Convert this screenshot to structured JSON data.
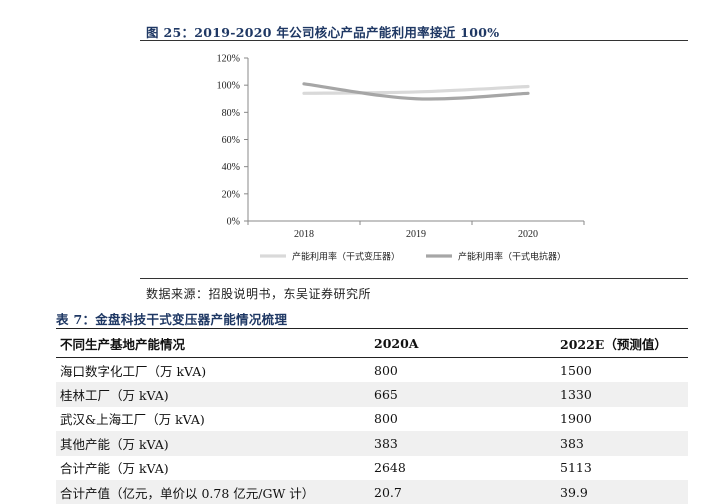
{
  "figure": {
    "title": "图 25：2019-2020 年公司核心产品产能利用率接近 100%"
  },
  "chart_data": {
    "type": "line",
    "x": [
      "2018",
      "2019",
      "2020"
    ],
    "ylim": [
      0,
      120
    ],
    "yticks": [
      "0%",
      "20%",
      "40%",
      "60%",
      "80%",
      "100%",
      "120%"
    ],
    "ytick_values": [
      0,
      20,
      40,
      60,
      80,
      100,
      120
    ],
    "legend_position": "bottom",
    "grid": false,
    "series": [
      {
        "name": "产能利用率（干式变压器）",
        "values": [
          94,
          95,
          99
        ],
        "color": "#d9d9d9"
      },
      {
        "name": "产能利用率（干式电抗器）",
        "values": [
          101,
          90,
          94
        ],
        "color": "#a6a6a6"
      }
    ]
  },
  "source": "数据来源：招股说明书，东吴证券研究所",
  "table": {
    "title": "表 7：金盘科技干式变压器产能情况梳理",
    "headers": [
      "不同生产基地产能情况",
      "2020A",
      "2022E（预测值）"
    ],
    "rows": [
      [
        "海口数字化工厂（万 kVA)",
        "800",
        "1500"
      ],
      [
        "桂林工厂（万 kVA)",
        "665",
        "1330"
      ],
      [
        "武汉&上海工厂（万 kVA)",
        "800",
        "1900"
      ],
      [
        "其他产能（万 kVA)",
        "383",
        "383"
      ],
      [
        "合计产能（万 kVA)",
        "2648",
        "5113"
      ],
      [
        "合计产值（亿元，单价以 0.78 亿元/GW 计）",
        "20.7",
        "39.9"
      ]
    ]
  }
}
